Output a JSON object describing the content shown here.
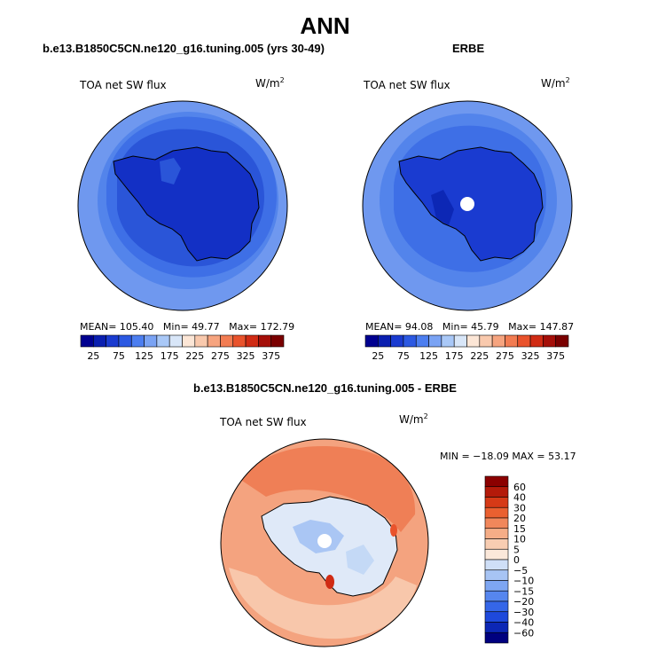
{
  "page_title": "ANN",
  "colors": {
    "abs_scale": [
      "#000090",
      "#0a1fb0",
      "#1a3bd0",
      "#2c59e2",
      "#4c7ef0",
      "#7aa3f4",
      "#a9c8f7",
      "#d8e6f8",
      "#fce6d6",
      "#f9c9ad",
      "#f6a47f",
      "#f27c52",
      "#e9532c",
      "#d02b14",
      "#a50f09",
      "#7a0000"
    ],
    "diff_scale": [
      "#00007f",
      "#0c27b5",
      "#1e49dc",
      "#3566e8",
      "#5686ef",
      "#7ea6f2",
      "#a7c4f4",
      "#cfdff7",
      "#fbe8da",
      "#f8cdb2",
      "#f5ad87",
      "#f1875b",
      "#ea6030",
      "#d63a17",
      "#b41a0a",
      "#8b0000"
    ],
    "land_line": "#000000"
  },
  "chart_data": [
    {
      "type": "heatmap",
      "projection": "south-polar-stereographic",
      "subtitle": "b.e13.B1850C5CN.ne120_g16.tuning.005 (yrs 30-49)",
      "variable_label": "TOA net SW flux",
      "units_base": "W/m",
      "units_exp": "2",
      "stats": {
        "mean_label": "MEAN=",
        "mean": "105.40",
        "min_label": "Min=",
        "min": "49.77",
        "max_label": "Max=",
        "max": "172.79"
      },
      "colorbar_levels": [
        25,
        50,
        75,
        100,
        125,
        150,
        175,
        200,
        225,
        250,
        275,
        300,
        325,
        350,
        375
      ],
      "colorbar_tick_labels": [
        "25",
        "75",
        "125",
        "175",
        "225",
        "275",
        "325",
        "375"
      ]
    },
    {
      "type": "heatmap",
      "projection": "south-polar-stereographic",
      "subtitle": "ERBE",
      "variable_label": "TOA net SW flux",
      "units_base": "W/m",
      "units_exp": "2",
      "stats": {
        "mean_label": "MEAN=",
        "mean": "94.08",
        "min_label": "Min=",
        "min": "45.79",
        "max_label": "Max=",
        "max": "147.87"
      },
      "colorbar_levels": [
        25,
        50,
        75,
        100,
        125,
        150,
        175,
        200,
        225,
        250,
        275,
        300,
        325,
        350,
        375
      ],
      "colorbar_tick_labels": [
        "25",
        "75",
        "125",
        "175",
        "225",
        "275",
        "325",
        "375"
      ]
    },
    {
      "type": "heatmap",
      "projection": "south-polar-stereographic",
      "subtitle": "b.e13.B1850C5CN.ne120_g16.tuning.005 - ERBE",
      "variable_label": "TOA net SW flux",
      "units_base": "W/m",
      "units_exp": "2",
      "stats_text": "MIN = −18.09  MAX =  53.17",
      "colorbar_levels": [
        -60,
        -40,
        -30,
        -20,
        -15,
        -10,
        -5,
        0,
        5,
        10,
        15,
        20,
        30,
        40,
        60
      ],
      "colorbar_tick_labels": [
        "60",
        "40",
        "30",
        "20",
        "15",
        "10",
        "5",
        "0",
        "−5",
        "−10",
        "−15",
        "−20",
        "−30",
        "−40",
        "−60"
      ]
    }
  ]
}
